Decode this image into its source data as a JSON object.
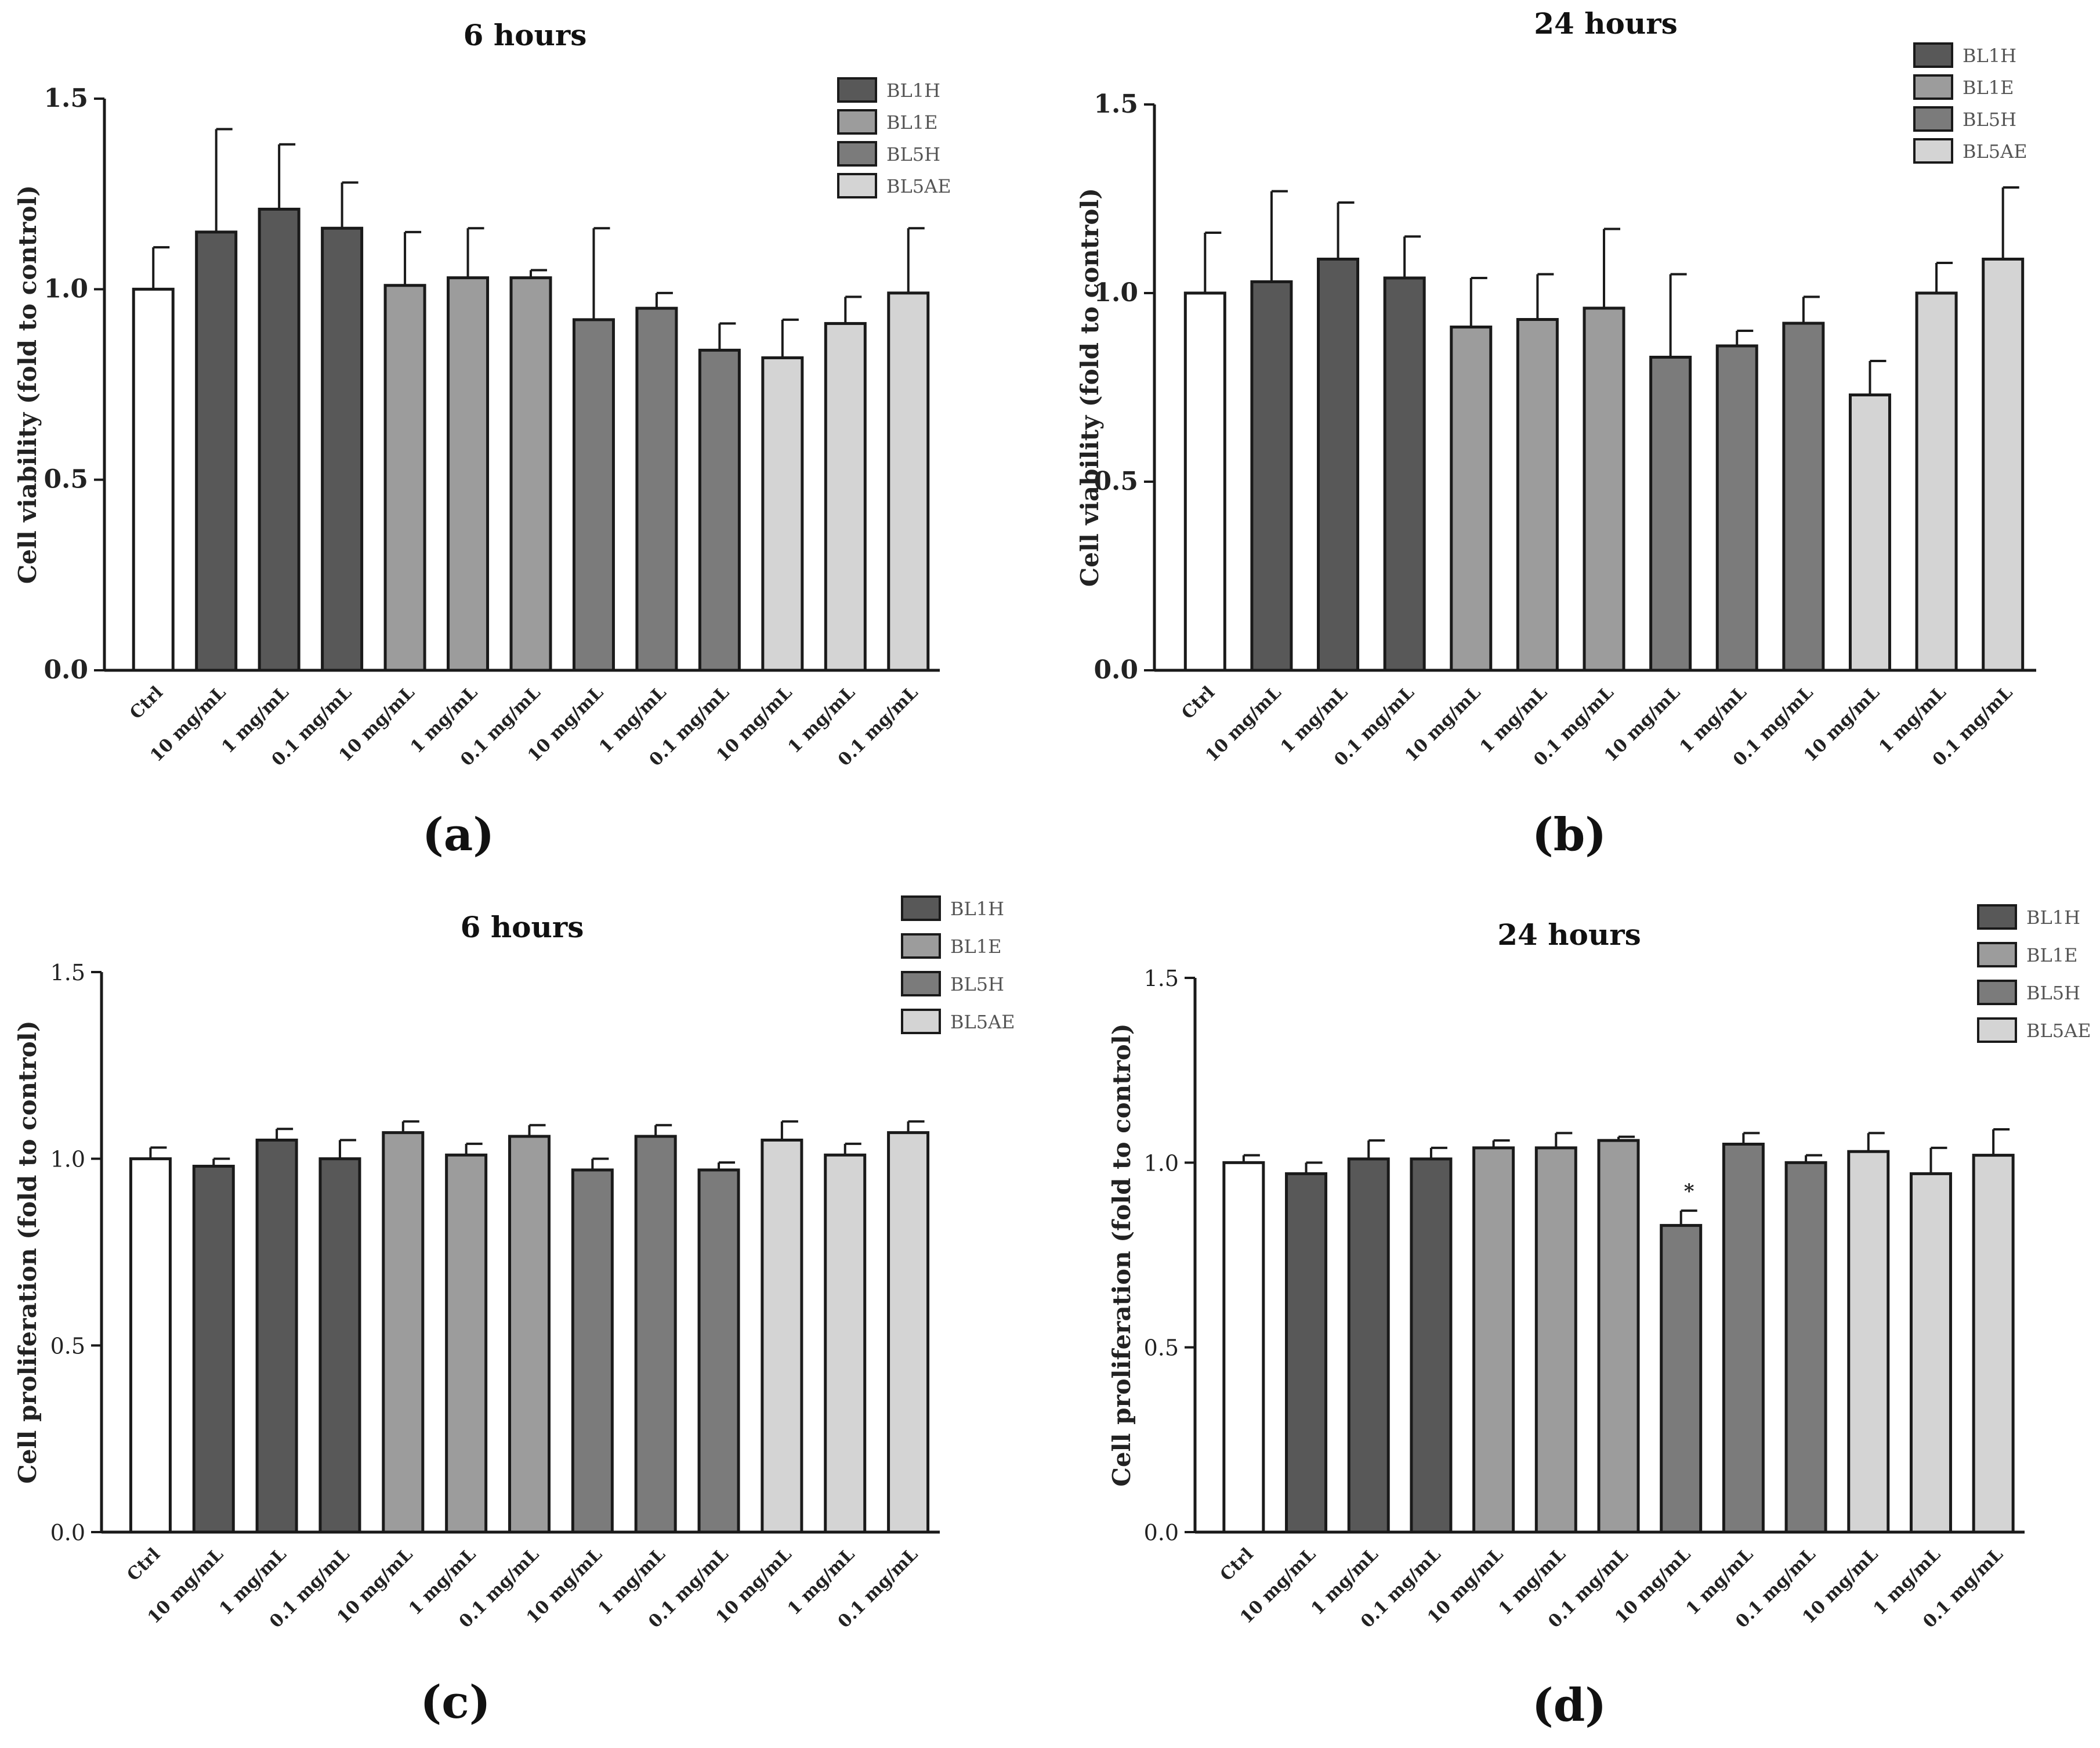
{
  "chart_data": [
    {
      "id": "a",
      "type": "bar",
      "panel_label": "(a)",
      "title": "6 hours",
      "ylabel": "Cell viability (fold to control)",
      "ylim": [
        0,
        1.5
      ],
      "yticks": [
        "0.0",
        "0.5",
        "1.0",
        "1.5"
      ],
      "categories": [
        "Ctrl",
        "10 mg/mL",
        "1 mg/mL",
        "0.1 mg/mL",
        "10 mg/mL",
        "1 mg/mL",
        "0.1 mg/mL",
        "10 mg/mL",
        "1 mg/mL",
        "0.1 mg/mL",
        "10 mg/mL",
        "1 mg/mL",
        "0.1 mg/mL"
      ],
      "groups": [
        "ctrl",
        "BL1H",
        "BL1H",
        "BL1H",
        "BL1E",
        "BL1E",
        "BL1E",
        "BL5H",
        "BL5H",
        "BL5H",
        "BL5AE",
        "BL5AE",
        "BL5AE"
      ],
      "values": [
        1.0,
        1.15,
        1.21,
        1.16,
        1.01,
        1.03,
        1.03,
        0.92,
        0.95,
        0.84,
        0.82,
        0.91,
        0.99
      ],
      "errors": [
        0.11,
        0.27,
        0.17,
        0.12,
        0.14,
        0.13,
        0.02,
        0.24,
        0.04,
        0.07,
        0.1,
        0.07,
        0.17
      ],
      "annotations": [],
      "legend": [
        "BL1H",
        "BL1E",
        "BL5H",
        "BL5AE"
      ],
      "legend_position": "top-right"
    },
    {
      "id": "b",
      "type": "bar",
      "panel_label": "(b)",
      "title": "24 hours",
      "ylabel": "Cell viability (fold to control)",
      "ylim": [
        0,
        1.5
      ],
      "yticks": [
        "0.0",
        "0.5",
        "1.0",
        "1.5"
      ],
      "categories": [
        "Ctrl",
        "10 mg/mL",
        "1 mg/mL",
        "0.1 mg/mL",
        "10 mg/mL",
        "1 mg/mL",
        "0.1 mg/mL",
        "10 mg/mL",
        "1 mg/mL",
        "0.1 mg/mL",
        "10 mg/mL",
        "1 mg/mL",
        "0.1 mg/mL"
      ],
      "groups": [
        "ctrl",
        "BL1H",
        "BL1H",
        "BL1H",
        "BL1E",
        "BL1E",
        "BL1E",
        "BL5H",
        "BL5H",
        "BL5H",
        "BL5AE",
        "BL5AE",
        "BL5AE"
      ],
      "values": [
        1.0,
        1.03,
        1.09,
        1.04,
        0.91,
        0.93,
        0.96,
        0.83,
        0.86,
        0.92,
        0.73,
        1.0,
        1.09
      ],
      "errors": [
        0.16,
        0.24,
        0.15,
        0.11,
        0.13,
        0.12,
        0.21,
        0.22,
        0.04,
        0.07,
        0.09,
        0.08,
        0.19
      ],
      "annotations": [],
      "legend": [
        "BL1H",
        "BL1E",
        "BL5H",
        "BL5AE"
      ],
      "legend_position": "top-right"
    },
    {
      "id": "c",
      "type": "bar",
      "panel_label": "(c)",
      "title": "6 hours",
      "ylabel": "Cell proliferation (fold to control)",
      "ylim": [
        0,
        1.5
      ],
      "yticks": [
        "0.0",
        "0.5",
        "1.0",
        "1.5"
      ],
      "categories": [
        "Ctrl",
        "10 mg/mL",
        "1 mg/mL",
        "0.1 mg/mL",
        "10 mg/mL",
        "1 mg/mL",
        "0.1 mg/mL",
        "10 mg/mL",
        "1 mg/mL",
        "0.1 mg/mL",
        "10 mg/mL",
        "1 mg/mL",
        "0.1 mg/mL"
      ],
      "groups": [
        "ctrl",
        "BL1H",
        "BL1H",
        "BL1H",
        "BL1E",
        "BL1E",
        "BL1E",
        "BL5H",
        "BL5H",
        "BL5H",
        "BL5AE",
        "BL5AE",
        "BL5AE"
      ],
      "values": [
        1.0,
        0.98,
        1.05,
        1.0,
        1.07,
        1.01,
        1.06,
        0.97,
        1.06,
        0.97,
        1.05,
        1.01,
        1.07
      ],
      "errors": [
        0.03,
        0.02,
        0.03,
        0.05,
        0.03,
        0.03,
        0.03,
        0.03,
        0.03,
        0.02,
        0.05,
        0.03,
        0.03
      ],
      "annotations": [],
      "legend": [
        "BL1H",
        "BL1E",
        "BL5H",
        "BL5AE"
      ],
      "legend_position": "top-right"
    },
    {
      "id": "d",
      "type": "bar",
      "panel_label": "(d)",
      "title": "24 hours",
      "ylabel": "Cell proliferation (fold to control)",
      "ylim": [
        0,
        1.5
      ],
      "yticks": [
        "0.0",
        "0.5",
        "1.0",
        "1.5"
      ],
      "categories": [
        "Ctrl",
        "10 mg/mL",
        "1 mg/mL",
        "0.1 mg/mL",
        "10 mg/mL",
        "1 mg/mL",
        "0.1 mg/mL",
        "10 mg/mL",
        "1 mg/mL",
        "0.1 mg/mL",
        "10 mg/mL",
        "1 mg/mL",
        "0.1 mg/mL"
      ],
      "groups": [
        "ctrl",
        "BL1H",
        "BL1H",
        "BL1H",
        "BL1E",
        "BL1E",
        "BL1E",
        "BL5H",
        "BL5H",
        "BL5H",
        "BL5AE",
        "BL5AE",
        "BL5AE"
      ],
      "values": [
        1.0,
        0.97,
        1.01,
        1.01,
        1.04,
        1.04,
        1.06,
        0.83,
        1.05,
        1.0,
        1.03,
        0.97,
        1.02
      ],
      "errors": [
        0.02,
        0.03,
        0.05,
        0.03,
        0.02,
        0.04,
        0.01,
        0.04,
        0.03,
        0.02,
        0.05,
        0.07,
        0.07
      ],
      "annotations": [
        {
          "bar_index": 7,
          "text": "*"
        }
      ],
      "legend": [
        "BL1H",
        "BL1E",
        "BL5H",
        "BL5AE"
      ],
      "legend_position": "top-right"
    }
  ],
  "colors": {
    "ctrl": "#ffffff",
    "BL1H": "#585858",
    "BL1E": "#9c9c9c",
    "BL5H": "#7b7b7b",
    "BL5AE": "#d4d4d4",
    "outline": "#1a1a1a"
  }
}
